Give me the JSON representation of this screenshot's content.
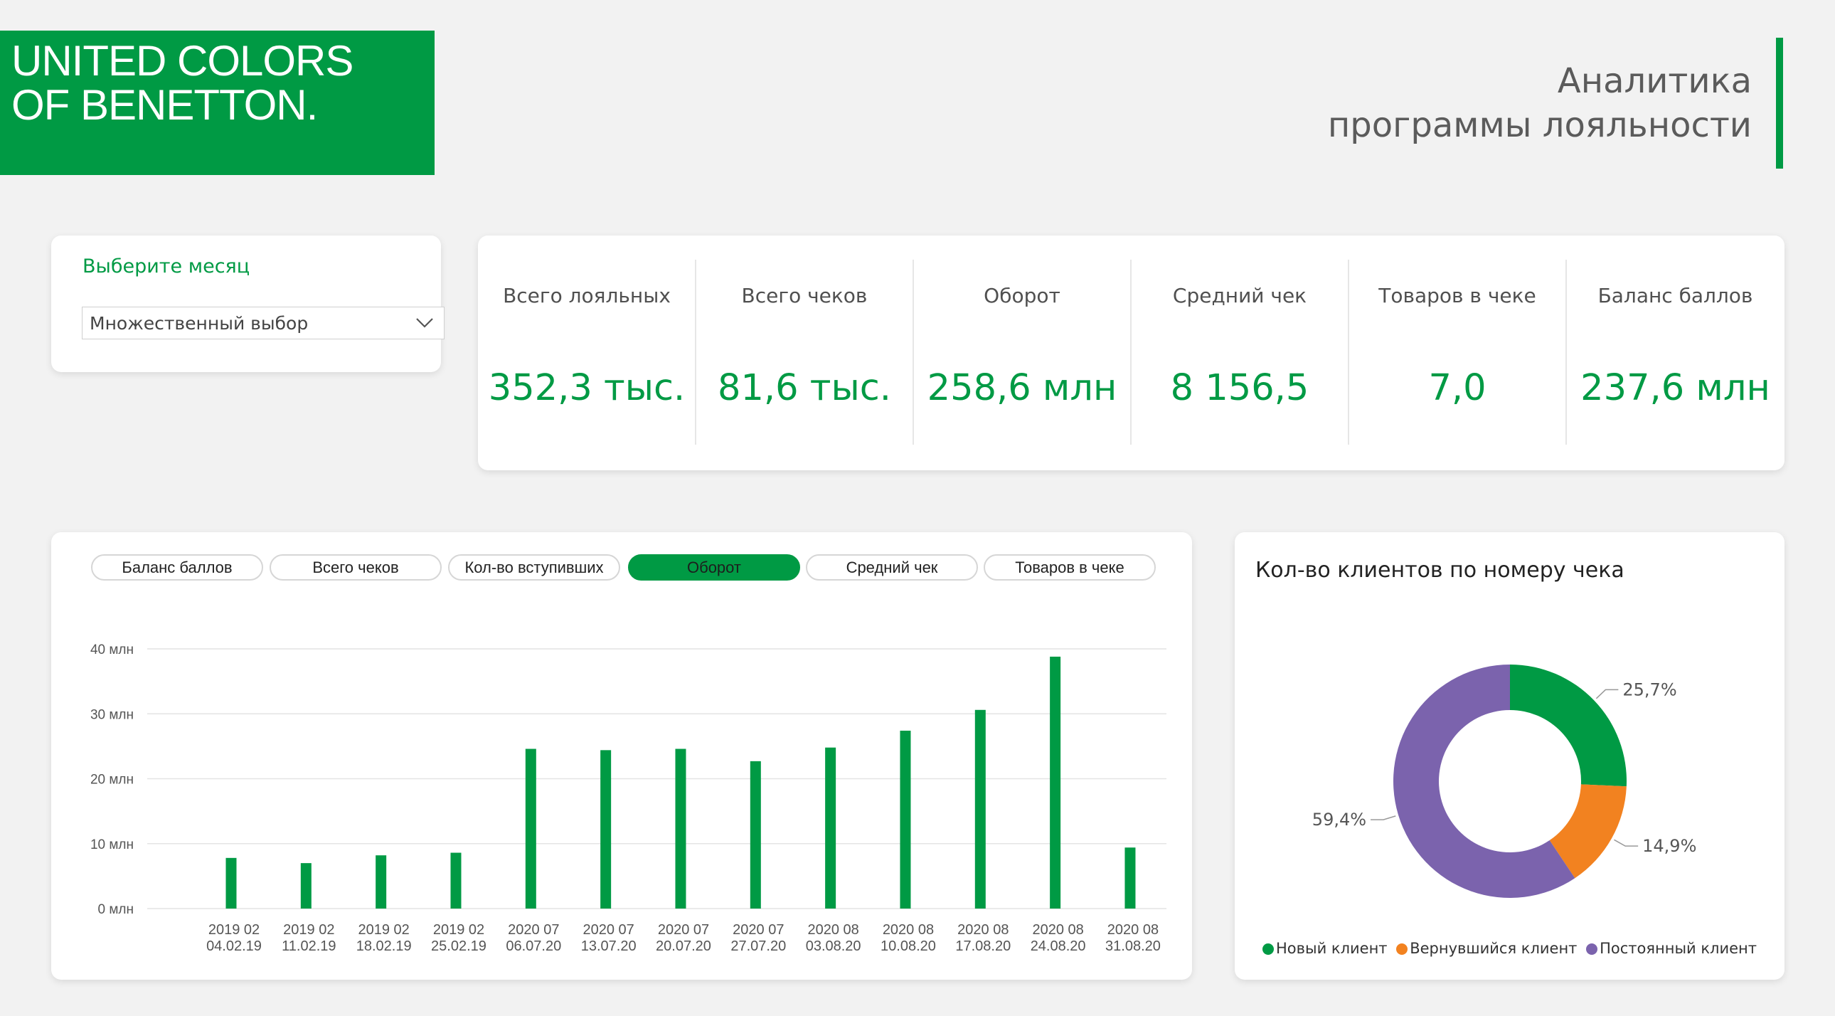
{
  "brand": {
    "logo_line1": "UNITED COLORS",
    "logo_line2": "OF BENETTON.",
    "color": "#009a44"
  },
  "header": {
    "title_line1": "Аналитика",
    "title_line2": "программы лояльности"
  },
  "filter": {
    "label": "Выберите месяц",
    "value": "Множественный выбор",
    "icon": "chevron-down-icon"
  },
  "kpis": [
    {
      "label": "Всего лояльных",
      "value": "352,3 тыс."
    },
    {
      "label": "Всего чеков",
      "value": "81,6 тыс."
    },
    {
      "label": "Оборот",
      "value": "258,6 млн"
    },
    {
      "label": "Средний чек",
      "value": "8 156,5"
    },
    {
      "label": "Товаров в чеке",
      "value": "7,0"
    },
    {
      "label": "Баланс баллов",
      "value": "237,6 млн"
    }
  ],
  "metric_tabs": [
    {
      "label": "Баланс баллов",
      "active": false
    },
    {
      "label": "Всего чеков",
      "active": false
    },
    {
      "label": "Кол-во вступивших",
      "active": false
    },
    {
      "label": "Оборот",
      "active": true
    },
    {
      "label": "Средний чек",
      "active": false
    },
    {
      "label": "Товаров в чеке",
      "active": false
    }
  ],
  "chart_data": [
    {
      "type": "bar",
      "categories": [
        [
          "2019 02",
          "04.02.19"
        ],
        [
          "2019 02",
          "11.02.19"
        ],
        [
          "2019 02",
          "18.02.19"
        ],
        [
          "2019 02",
          "25.02.19"
        ],
        [
          "2020 07",
          "06.07.20"
        ],
        [
          "2020 07",
          "13.07.20"
        ],
        [
          "2020 07",
          "20.07.20"
        ],
        [
          "2020 07",
          "27.07.20"
        ],
        [
          "2020 08",
          "03.08.20"
        ],
        [
          "2020 08",
          "10.08.20"
        ],
        [
          "2020 08",
          "17.08.20"
        ],
        [
          "2020 08",
          "24.08.20"
        ],
        [
          "2020 08",
          "31.08.20"
        ]
      ],
      "values": [
        7.8,
        7.0,
        8.2,
        8.6,
        24.6,
        24.4,
        24.6,
        22.7,
        24.8,
        27.4,
        30.6,
        38.8,
        9.4
      ],
      "unit": "млн",
      "ylim": [
        0,
        40
      ],
      "yticks": [
        "0 млн",
        "10 млн",
        "20 млн",
        "30 млн",
        "40 млн"
      ],
      "ytick_values": [
        0,
        10,
        20,
        30,
        40
      ],
      "grid": true,
      "color": "#009a44"
    },
    {
      "type": "pie",
      "title": "Кол-во клиентов по номеру чека",
      "labels": [
        "Новый клиент",
        "Вернувшийся клиент",
        "Постоянный клиент"
      ],
      "values": [
        25.7,
        14.9,
        59.4
      ],
      "value_labels": [
        "25,7%",
        "14,9%",
        "59,4%"
      ],
      "colors": [
        "#009a44",
        "#f28220",
        "#7b63ad"
      ],
      "donut": true,
      "legend": "bottom"
    }
  ]
}
